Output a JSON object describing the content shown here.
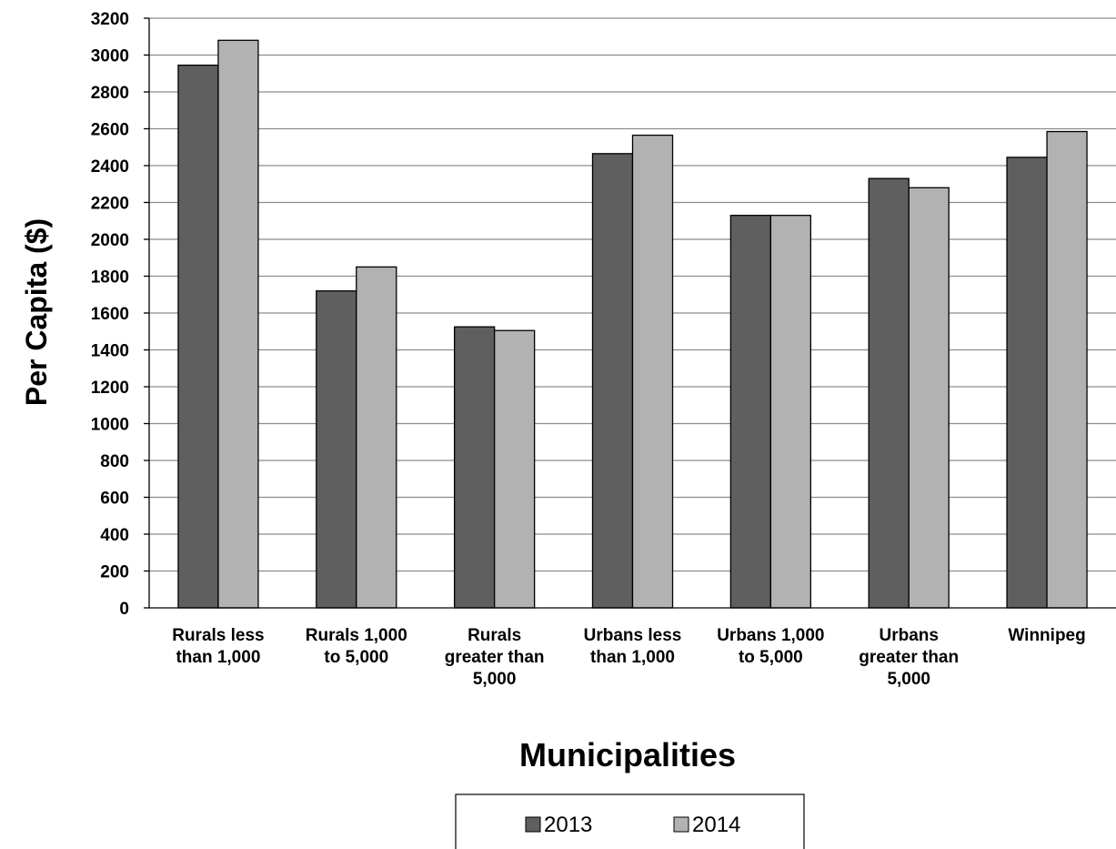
{
  "chart_data": {
    "type": "bar",
    "ylabel": "Per Capita ($)",
    "xlabel": "Municipalities",
    "ylim": [
      0,
      3200
    ],
    "yticks": [
      0,
      200,
      400,
      600,
      800,
      1000,
      1200,
      1400,
      1600,
      1800,
      2000,
      2200,
      2400,
      2600,
      2800,
      3000,
      3200
    ],
    "grid": true,
    "legend_position": "bottom",
    "categories": [
      [
        "Rurals less",
        "than 1,000"
      ],
      [
        "Rurals 1,000",
        "to 5,000"
      ],
      [
        "Rurals",
        "greater than",
        "5,000"
      ],
      [
        "Urbans less",
        "than 1,000"
      ],
      [
        "Urbans 1,000",
        "to 5,000"
      ],
      [
        "Urbans",
        "greater than",
        "5,000"
      ],
      [
        "Winnipeg"
      ]
    ],
    "series": [
      {
        "name": "2013",
        "color": "#5f5f5f",
        "values": [
          2945,
          1720,
          1525,
          2465,
          2130,
          2330,
          2445
        ]
      },
      {
        "name": "2014",
        "color": "#b2b2b2",
        "values": [
          3080,
          1850,
          1505,
          2565,
          2130,
          2280,
          2585
        ]
      }
    ]
  }
}
